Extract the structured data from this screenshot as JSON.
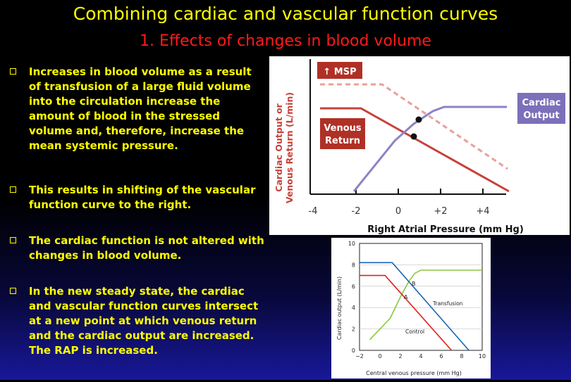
{
  "slide": {
    "title": "Combining cardiac and vascular function curves",
    "subtitle": "1. Effects of changes in blood volume",
    "bullets": [
      "Increases in blood volume as a result of transfusion of a large fluid volume into the circulation increase the amount of blood in the stressed volume and, therefore, increase the mean systemic pressure.",
      "This results in shifting of the vascular function curve to the right.",
      "The cardiac function is not altered with changes in blood volume.",
      "In the new steady state, the cardiac and vascular function curves intersect at a new point at which venous return and the  cardiac output  are increased. The RAP is increased."
    ]
  },
  "figure1": {
    "ylabel_line1": "Cardiac Output or",
    "ylabel_line2": "Venous Return (L/min)",
    "xlabel": "Right Atrial Pressure (mm Hg)",
    "xticks": [
      "-4",
      "-2",
      "0",
      "+2",
      "+4"
    ],
    "msp_label": "↑ MSP",
    "cardiac_output_label": [
      "Cardiac",
      "Output"
    ],
    "venous_return_label": [
      "Venous",
      "Return"
    ],
    "colors": {
      "venous": "#c6423a",
      "venous_light": "#e8a09a",
      "cardiac": "#8e82c6",
      "box": "#b03026",
      "co_box": "#7c70ba"
    }
  },
  "figure2": {
    "ylabel": "Cardiac output (L/min)",
    "xlabel": "Central venous pressure (mm Hg)",
    "yticks": [
      "0",
      "2",
      "4",
      "6",
      "8",
      "10"
    ],
    "xticks": [
      "−2",
      "0",
      "2",
      "4",
      "6",
      "8",
      "10"
    ],
    "point_a": "A",
    "point_b": "B",
    "transfusion_label": "Transfusion",
    "control_label": "Control",
    "colors": {
      "cardiac": "#8dc63f",
      "control": "#e02020",
      "transfusion": "#1a64b4"
    },
    "chart_data": {
      "type": "line",
      "xlabel": "Central venous pressure (mm Hg)",
      "ylabel": "Cardiac output (L/min)",
      "xlim": [
        -2,
        10
      ],
      "ylim": [
        0,
        10
      ],
      "series": [
        {
          "x": [
            -1,
            1,
            2,
            2.8,
            3.4,
            4,
            10
          ],
          "y": [
            1,
            3,
            5,
            6.4,
            7.2,
            7.5,
            7.5
          ]
        },
        {
          "name": "Control",
          "x": [
            -2,
            0.5,
            7
          ],
          "y": [
            7,
            7,
            0
          ]
        },
        {
          "name": "Transfusion",
          "x": [
            -2,
            1.2,
            8.7
          ],
          "y": [
            8.2,
            8.2,
            0
          ]
        }
      ]
    }
  }
}
